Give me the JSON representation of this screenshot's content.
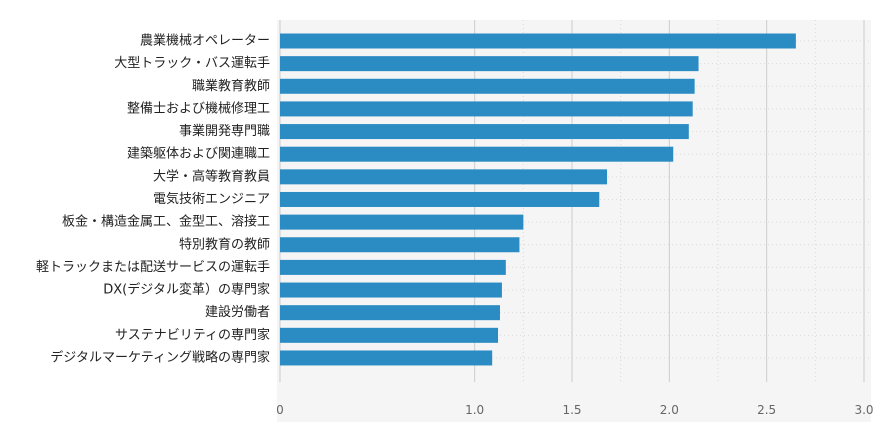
{
  "colors": {
    "bar": "#2b8cc4",
    "plot_background": "#f5f5f5",
    "grid_major": "#cccccc",
    "grid_minor": "#d9d9d9",
    "label_text": "#222222",
    "tick_text": "#666666"
  },
  "chart_data": {
    "type": "bar",
    "orientation": "horizontal",
    "title": "",
    "xlabel": "",
    "ylabel": "",
    "xlim": [
      0,
      3.0
    ],
    "x_ticks": [
      0,
      1.0,
      1.5,
      2.0,
      2.5,
      3.0
    ],
    "x_tick_labels": [
      "0",
      "1.0",
      "1.5",
      "2.0",
      "2.5",
      "3.0"
    ],
    "grid": true,
    "legend": "none",
    "categories": [
      "農業機械オペレーター",
      "大型トラック・バス運転手",
      "職業教育教師",
      "整備士および機械修理工",
      "事業開発専門職",
      "建築躯体および関連職工",
      "大学・高等教育教員",
      "電気技術エンジニア",
      "板金・構造金属工、金型工、溶接工",
      "特別教育の教師",
      "軽トラックまたは配送サービスの運転手",
      "DX(デジタル変革）の専門家",
      "建設労働者",
      "サステナビリティの専門家",
      "デジタルマーケティング戦略の専門家"
    ],
    "values": [
      2.65,
      2.15,
      2.13,
      2.12,
      2.1,
      2.02,
      1.68,
      1.64,
      1.25,
      1.23,
      1.16,
      1.14,
      1.13,
      1.12,
      1.09
    ]
  }
}
